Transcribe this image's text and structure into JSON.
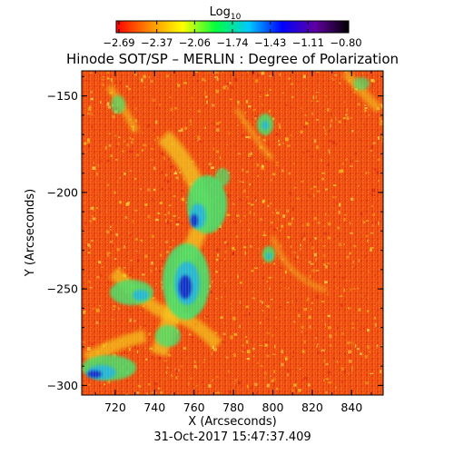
{
  "colorbar": {
    "label_base": "Log",
    "label_sub": "10",
    "ticks": [
      "-2.69",
      "-2.37",
      "-2.06",
      "-1.74",
      "-1.43",
      "-1.11",
      "-0.80"
    ],
    "colors": [
      "#ff0000",
      "#ff8c00",
      "#ffff00",
      "#00ff40",
      "#00c8ff",
      "#0000ff",
      "#6000a0",
      "#000000"
    ]
  },
  "title": "Hinode SOT/SP – MERLIN : Degree of Polarization",
  "axes": {
    "xlabel": "X (Arcseconds)",
    "ylabel": "Y (Arcseconds)",
    "xlim": [
      703,
      856
    ],
    "ylim": [
      -305,
      -137
    ],
    "xticks": [
      "720",
      "740",
      "760",
      "780",
      "800",
      "820",
      "840"
    ],
    "yticks": [
      "-150",
      "-200",
      "-250",
      "-300"
    ]
  },
  "timestamp": "31-Oct-2017 15:47:37.409",
  "image_palette": {
    "background": "#f04a10",
    "dark_red": "#e02a10",
    "yellow": "#f2c820",
    "green": "#40e070",
    "cyan": "#20b8d8",
    "blue": "#1030d0"
  }
}
